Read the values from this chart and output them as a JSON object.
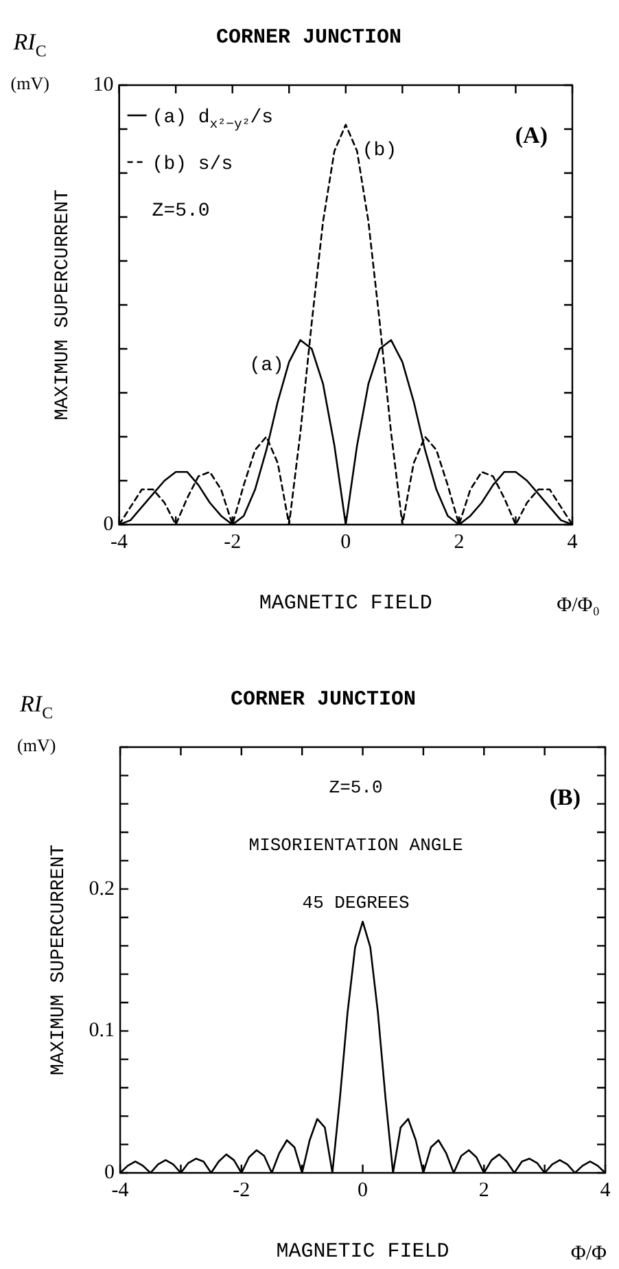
{
  "chart_data": [
    {
      "type": "line",
      "title": "CORNER JUNCTION",
      "xlabel": "MAGNETIC FIELD",
      "ylabel": "MAXIMUM SUPERCURRENT",
      "x": [
        -4,
        -3.8,
        -3.6,
        -3.4,
        -3.2,
        -3,
        -2.8,
        -2.6,
        -2.4,
        -2.2,
        -2,
        -1.8,
        -1.6,
        -1.4,
        -1.2,
        -1,
        -0.8,
        -0.6,
        -0.4,
        -0.2,
        0,
        0.2,
        0.4,
        0.6,
        0.8,
        1,
        1.2,
        1.4,
        1.6,
        1.8,
        2,
        2.2,
        2.4,
        2.6,
        2.8,
        3,
        3.2,
        3.4,
        3.6,
        3.8,
        4
      ],
      "series": [
        {
          "name": "(a) d$_{x²−y²}$/s",
          "color": "#000000",
          "line_style": "solid",
          "values": [
            0,
            0.1,
            0.4,
            0.7,
            1.0,
            1.2,
            1.2,
            0.9,
            0.5,
            0.2,
            0,
            0.2,
            0.8,
            1.7,
            2.8,
            3.7,
            4.2,
            4.0,
            3.2,
            1.8,
            0,
            1.8,
            3.2,
            4.0,
            4.2,
            3.7,
            2.8,
            1.7,
            0.8,
            0.2,
            0,
            0.2,
            0.5,
            0.9,
            1.2,
            1.2,
            1.0,
            0.7,
            0.4,
            0.1,
            0
          ]
        },
        {
          "name": "(b) s/s",
          "color": "#000000",
          "line_style": "dashed",
          "values": [
            0,
            0.4,
            0.8,
            0.8,
            0.5,
            0,
            0.6,
            1.1,
            1.2,
            0.8,
            0,
            0.9,
            1.7,
            2.0,
            1.4,
            0,
            2.1,
            4.6,
            6.9,
            8.5,
            9.1,
            8.5,
            6.9,
            4.6,
            2.1,
            0,
            1.4,
            2.0,
            1.7,
            0.9,
            0,
            0.8,
            1.2,
            1.1,
            0.6,
            0,
            0.5,
            0.8,
            0.8,
            0.4,
            0
          ]
        }
      ],
      "xlim": [
        -4,
        4
      ],
      "xticks": [
        -4,
        {
          "value": -3,
          "label": null
        },
        -2,
        {
          "value": -1,
          "label": null
        },
        0,
        {
          "value": 1,
          "label": null
        },
        2,
        {
          "value": 3,
          "label": null
        },
        4
      ],
      "ylim": [
        0,
        10
      ],
      "yticks": [
        0,
        {
          "value": 1,
          "label": null
        },
        {
          "value": 2,
          "label": null
        },
        {
          "value": 3,
          "label": null
        },
        {
          "value": 4,
          "label": null
        },
        {
          "value": 5,
          "label": null
        },
        {
          "value": 6,
          "label": null
        },
        {
          "value": 7,
          "label": null
        },
        {
          "value": 8,
          "label": null
        },
        {
          "value": 9,
          "label": null
        },
        10
      ],
      "grid": false,
      "legend": "top left",
      "marker": "none",
      "annotations": [
        "RI$_{C}$",
        "(mV)",
        "Φ/Φ₀",
        "Z=5.0",
        "(A)",
        "(a)",
        "(b)"
      ]
    },
    {
      "type": "line",
      "title": "CORNER JUNCTION",
      "xlabel": "MAGNETIC FIELD",
      "ylabel": "MAXIMUM SUPERCURRENT",
      "x": [
        -4,
        -3.875,
        -3.75,
        -3.625,
        -3.5,
        -3.375,
        -3.25,
        -3.125,
        -3,
        -2.875,
        -2.75,
        -2.625,
        -2.5,
        -2.375,
        -2.25,
        -2.125,
        -2,
        -1.875,
        -1.75,
        -1.625,
        -1.5,
        -1.375,
        -1.25,
        -1.125,
        -1,
        -0.875,
        -0.75,
        -0.625,
        -0.5,
        -0.375,
        -0.25,
        -0.125,
        0,
        0.125,
        0.25,
        0.375,
        0.5,
        0.625,
        0.75,
        0.875,
        1,
        1.125,
        1.25,
        1.375,
        1.5,
        1.625,
        1.75,
        1.875,
        2,
        2.125,
        2.25,
        2.375,
        2.5,
        2.625,
        2.75,
        2.875,
        3,
        3.125,
        3.25,
        3.375,
        3.5,
        3.625,
        3.75,
        3.875,
        4
      ],
      "series": [
        {
          "color": "#000000",
          "line_style": "solid",
          "values": [
            0,
            0.005,
            0.008,
            0.005,
            0,
            0.006,
            0.009,
            0.006,
            0,
            0.007,
            0.01,
            0.008,
            0,
            0.008,
            0.013,
            0.009,
            0,
            0.011,
            0.016,
            0.012,
            0,
            0.014,
            0.023,
            0.018,
            0,
            0.023,
            0.038,
            0.032,
            0,
            0.053,
            0.113,
            0.159,
            0.177,
            0.159,
            0.113,
            0.053,
            0,
            0.032,
            0.038,
            0.023,
            0,
            0.018,
            0.023,
            0.014,
            0,
            0.012,
            0.016,
            0.011,
            0,
            0.009,
            0.013,
            0.008,
            0,
            0.008,
            0.01,
            0.007,
            0,
            0.006,
            0.009,
            0.006,
            0,
            0.005,
            0.008,
            0.005,
            0
          ]
        }
      ],
      "xlim": [
        -4,
        4
      ],
      "xticks": [
        -4,
        {
          "value": -3,
          "label": null
        },
        -2,
        {
          "value": -1,
          "label": null
        },
        0,
        {
          "value": 1,
          "label": null
        },
        2,
        {
          "value": 3,
          "label": null
        },
        4
      ],
      "ylim": [
        0,
        0.3
      ],
      "yticks": [
        0,
        {
          "value": 0.02,
          "label": null
        },
        {
          "value": 0.04,
          "label": null
        },
        {
          "value": 0.06,
          "label": null
        },
        {
          "value": 0.08,
          "label": null
        },
        0.1,
        {
          "value": 0.12,
          "label": null
        },
        {
          "value": 0.14,
          "label": null
        },
        {
          "value": 0.16,
          "label": null
        },
        {
          "value": 0.18,
          "label": null
        },
        0.2,
        {
          "value": 0.22,
          "label": null
        },
        {
          "value": 0.24,
          "label": null
        },
        {
          "value": 0.26,
          "label": null
        },
        {
          "value": 0.28,
          "label": null
        },
        {
          "value": 0.3,
          "label": null
        }
      ],
      "grid": false,
      "legend": false,
      "marker": "none",
      "annotations": [
        "RI$_{C}$",
        "(mV)",
        "Φ/Φ",
        "Z=5.0",
        "MISORIENTATION ANGLE",
        "45 DEGREES",
        "(B)"
      ]
    }
  ]
}
